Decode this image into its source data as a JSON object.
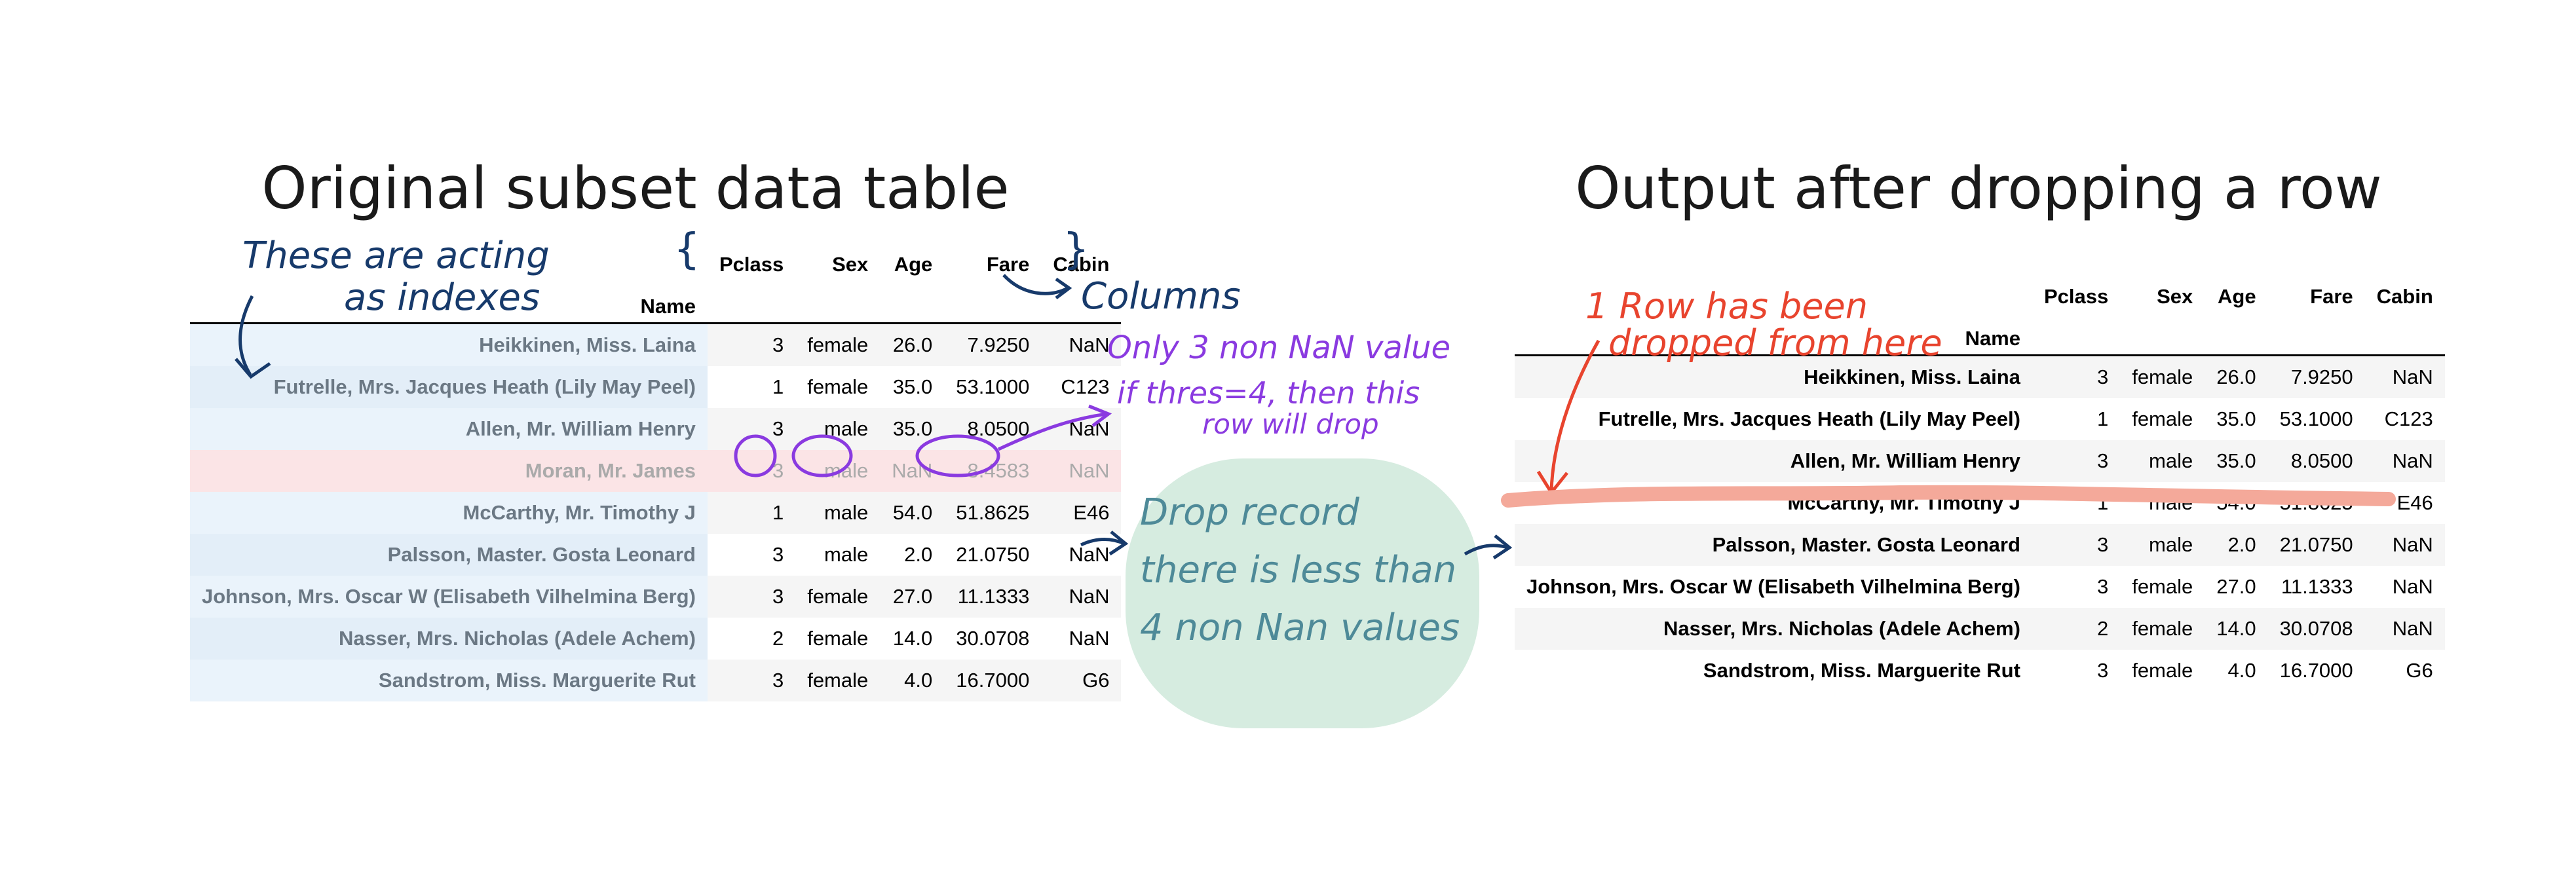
{
  "titles": {
    "left": "Original subset data table",
    "right": "Output after dropping  a row"
  },
  "table": {
    "index_name": "Name",
    "columns": [
      "Pclass",
      "Sex",
      "Age",
      "Fare",
      "Cabin"
    ],
    "original_rows": [
      {
        "name": "Heikkinen, Miss. Laina",
        "pclass": "3",
        "sex": "female",
        "age": "26.0",
        "fare": "7.9250",
        "cabin": "NaN"
      },
      {
        "name": "Futrelle, Mrs. Jacques Heath (Lily May Peel)",
        "pclass": "1",
        "sex": "female",
        "age": "35.0",
        "fare": "53.1000",
        "cabin": "C123"
      },
      {
        "name": "Allen, Mr. William Henry",
        "pclass": "3",
        "sex": "male",
        "age": "35.0",
        "fare": "8.0500",
        "cabin": "NaN"
      },
      {
        "name": "Moran, Mr. James",
        "pclass": "3",
        "sex": "male",
        "age": "NaN",
        "fare": "8.4583",
        "cabin": "NaN"
      },
      {
        "name": "McCarthy, Mr. Timothy J",
        "pclass": "1",
        "sex": "male",
        "age": "54.0",
        "fare": "51.8625",
        "cabin": "E46"
      },
      {
        "name": "Palsson, Master. Gosta Leonard",
        "pclass": "3",
        "sex": "male",
        "age": "2.0",
        "fare": "21.0750",
        "cabin": "NaN"
      },
      {
        "name": "Johnson, Mrs. Oscar W (Elisabeth Vilhelmina Berg)",
        "pclass": "3",
        "sex": "female",
        "age": "27.0",
        "fare": "11.1333",
        "cabin": "NaN"
      },
      {
        "name": "Nasser, Mrs. Nicholas (Adele Achem)",
        "pclass": "2",
        "sex": "female",
        "age": "14.0",
        "fare": "30.0708",
        "cabin": "NaN"
      },
      {
        "name": "Sandstrom, Miss. Marguerite Rut",
        "pclass": "3",
        "sex": "female",
        "age": "4.0",
        "fare": "16.7000",
        "cabin": "G6"
      }
    ],
    "output_rows": [
      {
        "name": "Heikkinen, Miss. Laina",
        "pclass": "3",
        "sex": "female",
        "age": "26.0",
        "fare": "7.9250",
        "cabin": "NaN"
      },
      {
        "name": "Futrelle, Mrs. Jacques Heath (Lily May Peel)",
        "pclass": "1",
        "sex": "female",
        "age": "35.0",
        "fare": "53.1000",
        "cabin": "C123"
      },
      {
        "name": "Allen, Mr. William Henry",
        "pclass": "3",
        "sex": "male",
        "age": "35.0",
        "fare": "8.0500",
        "cabin": "NaN"
      },
      {
        "name": "McCarthy, Mr. Timothy J",
        "pclass": "1",
        "sex": "male",
        "age": "54.0",
        "fare": "51.8625",
        "cabin": "E46"
      },
      {
        "name": "Palsson, Master. Gosta Leonard",
        "pclass": "3",
        "sex": "male",
        "age": "2.0",
        "fare": "21.0750",
        "cabin": "NaN"
      },
      {
        "name": "Johnson, Mrs. Oscar W (Elisabeth Vilhelmina Berg)",
        "pclass": "3",
        "sex": "female",
        "age": "27.0",
        "fare": "11.1333",
        "cabin": "NaN"
      },
      {
        "name": "Nasser, Mrs. Nicholas (Adele Achem)",
        "pclass": "2",
        "sex": "female",
        "age": "14.0",
        "fare": "30.0708",
        "cabin": "NaN"
      },
      {
        "name": "Sandstrom, Miss. Marguerite Rut",
        "pclass": "3",
        "sex": "female",
        "age": "4.0",
        "fare": "16.7000",
        "cabin": "G6"
      }
    ]
  },
  "annotations": {
    "index_note_line1": "These are acting",
    "index_note_line2": "as indexes",
    "columns_note": "Columns",
    "nan_note_line1": "Only 3 non NaN value",
    "nan_note_line2": "if thres=4, then this",
    "nan_note_line3": "row will drop",
    "drop_box_line1": "Drop record",
    "drop_box_line2": "there is less than",
    "drop_box_line3": "4 non Nan values",
    "dropped_note_line1": "1 Row has been",
    "dropped_note_line2": "dropped from here"
  },
  "colors": {
    "index_annotation": "#173a6b",
    "nan_annotation": "#8a3ae0",
    "drop_box_fill": "#d6ece0",
    "drop_box_text": "#4e8a98",
    "dropped_annotation": "#e8442e",
    "strike_line": "#f4a99a",
    "dropped_row_fill": "#fbe4e6",
    "index_column_fill": "#e3eef8"
  }
}
